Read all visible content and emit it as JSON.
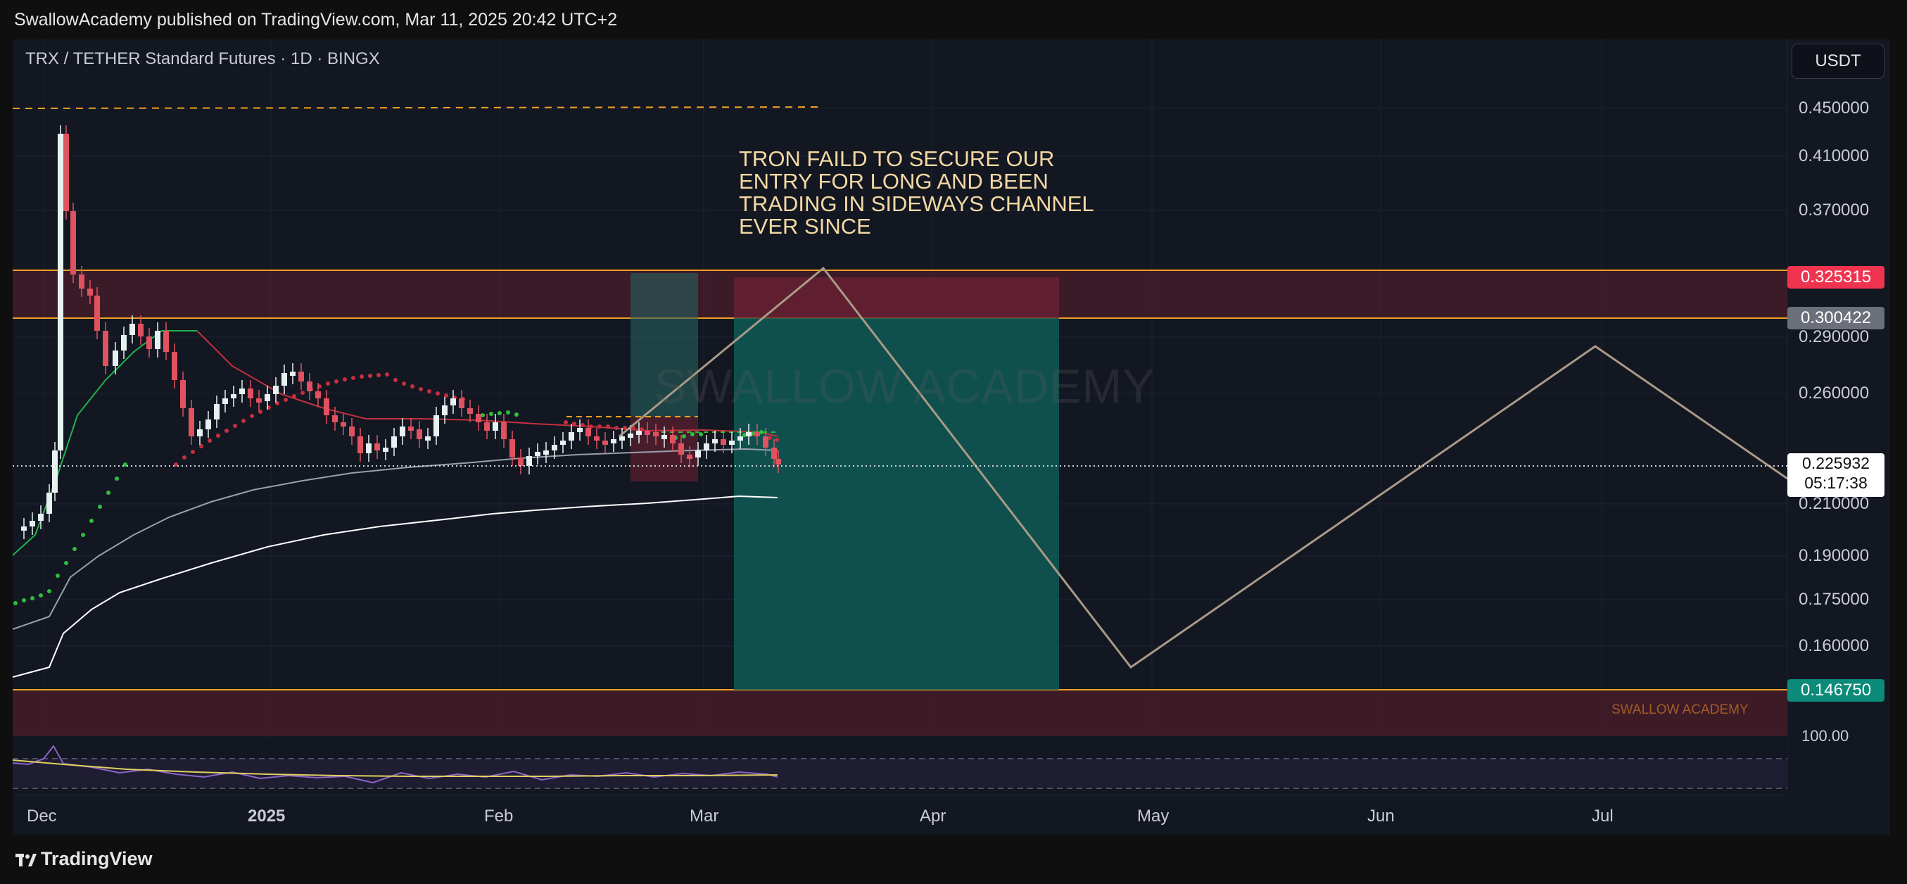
{
  "header": {
    "published_line": "SwallowAcademy published on TradingView.com, Mar 11, 2025 20:42 UTC+2"
  },
  "symbol": {
    "title": "TRX / TETHER Standard Futures · 1D · BINGX",
    "currency_button": "USDT"
  },
  "annotation_text": "TRON FAILD TO SECURE OUR ENTRY FOR LONG AND BEEN TRADING IN SIDEWAYS CHANNEL EVER SINCE",
  "watermark": {
    "center": "SWALLOW ACADEMY",
    "corner": "SWALLOW ACADEMY"
  },
  "price_axis": {
    "labels": [
      "0.450000",
      "0.410000",
      "0.370000",
      "0.290000",
      "0.260000",
      "0.210000",
      "0.190000",
      "0.175000",
      "0.160000"
    ],
    "rsi_label": "100.00"
  },
  "price_tags": {
    "resistance_top": "0.325315",
    "resistance_bottom": "0.300422",
    "current_price": "0.225932",
    "countdown": "05:17:38",
    "support": "0.146750"
  },
  "time_axis": [
    "Dec",
    "2025",
    "Feb",
    "Mar",
    "Apr",
    "May",
    "Jun",
    "Jul"
  ],
  "footer": {
    "brand": "TradingView"
  },
  "colors": {
    "background": "#131722",
    "resistance_zone": "#5e1f2f",
    "support_zone": "#4b1d2a",
    "profit_zone": "#0f5a56",
    "loss_zone": "#6b2233",
    "projection_line": "#a99a86",
    "level_line": "#f0a020",
    "ema_green": "#22b14c",
    "ema_red": "#c4303e",
    "sar_dots": "#2fbf3c"
  }
}
